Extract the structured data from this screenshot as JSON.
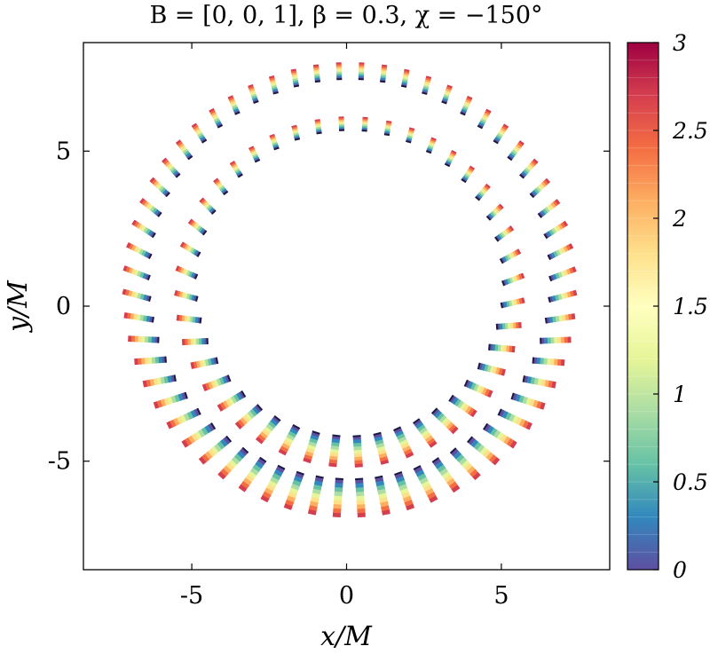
{
  "figure": {
    "title": "B = [0,  0,  1],  β = 0.3,  χ = −150°"
  },
  "chart_data": {
    "type": "scatter",
    "description_of_marks": "short color-graded polarization ticks arranged on two rings",
    "xlabel": "x/M",
    "ylabel": "y/M",
    "xlim": [
      -8.5,
      8.5
    ],
    "ylim": [
      -8.5,
      8.5
    ],
    "xticks": [
      -5,
      0,
      5
    ],
    "yticks": [
      -5,
      0,
      5
    ],
    "xtick_labels": [
      "-5",
      "0",
      "5"
    ],
    "ytick_labels": [
      "-5",
      "0",
      "5"
    ],
    "grid": false,
    "rings": [
      {
        "name": "inner",
        "center": [
          0.1,
          0.6
        ],
        "radius": 5.3,
        "count": 44
      },
      {
        "name": "outer",
        "center": [
          0.1,
          0.7
        ],
        "radius": 6.9,
        "count": 60
      }
    ],
    "colorbar": {
      "min": 0,
      "max": 3,
      "ticks": [
        0,
        0.5,
        1,
        1.5,
        2,
        2.5,
        3
      ],
      "tick_labels": [
        "0",
        "0.5",
        "1",
        "1.5",
        "2",
        "2.5",
        "3"
      ],
      "colormap": "Spectral_r",
      "stops": [
        "#5e4fa2",
        "#3288bd",
        "#66c2a5",
        "#abdda4",
        "#e6f598",
        "#ffffbf",
        "#fee08b",
        "#fdae61",
        "#f46d43",
        "#d53e4f",
        "#9e0142"
      ]
    }
  }
}
